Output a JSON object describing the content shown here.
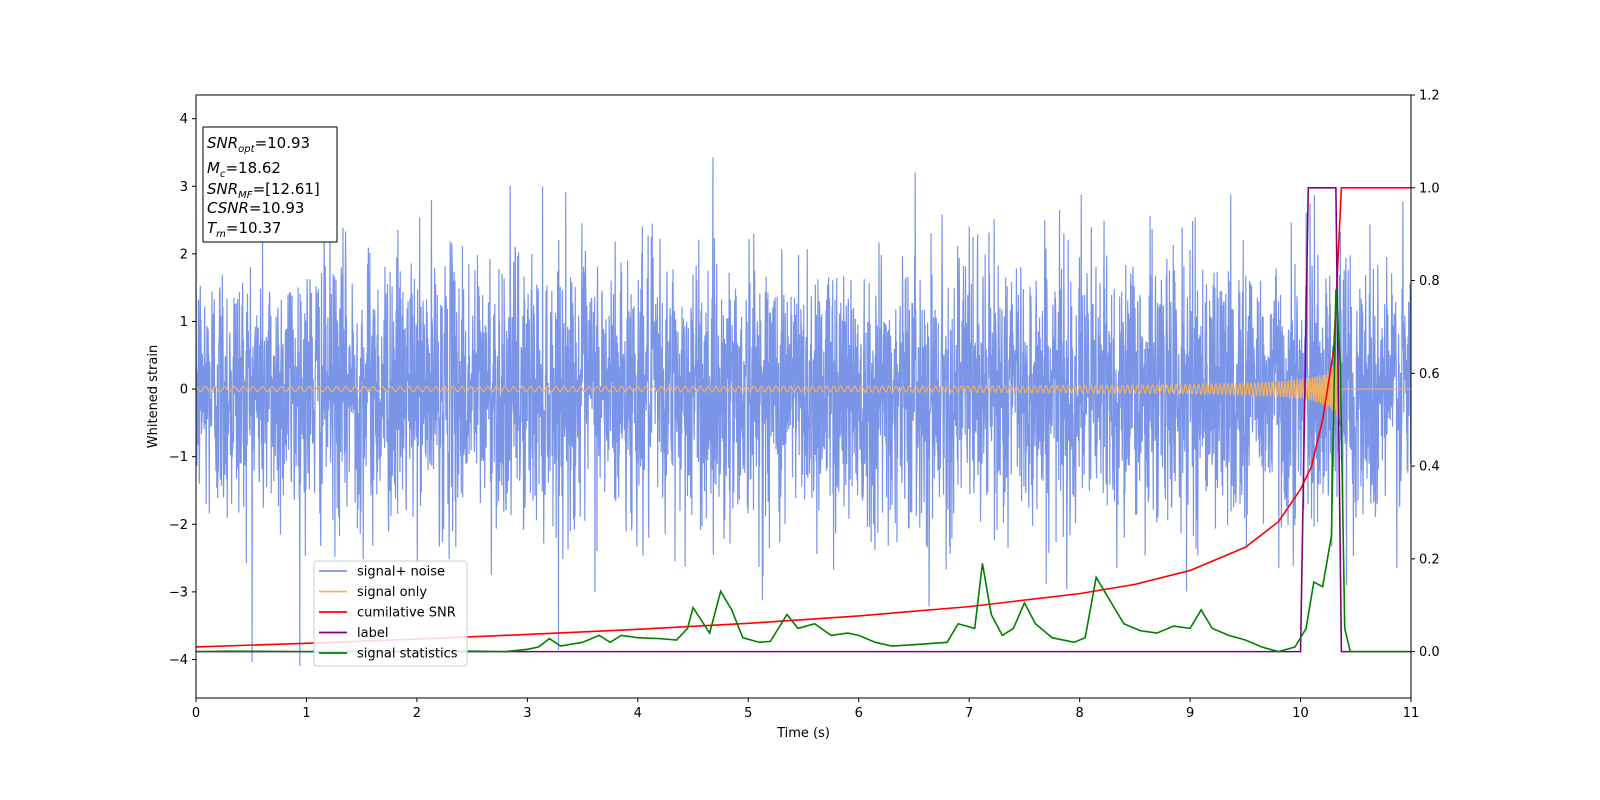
{
  "chart_data": {
    "type": "line",
    "xlabel": "Time (s)",
    "ylabel": "Whitened strain",
    "xlim": [
      0,
      11
    ],
    "ylim_left": [
      -4.57,
      4.35
    ],
    "ylim_right": [
      -0.1,
      1.2
    ],
    "x_ticks": [
      0,
      1,
      2,
      3,
      4,
      5,
      6,
      7,
      8,
      9,
      10,
      11
    ],
    "y_ticks_left": [
      -4,
      -3,
      -2,
      -1,
      0,
      1,
      2,
      3,
      4
    ],
    "y_ticks_left_labels": [
      "−4",
      "−3",
      "−2",
      "−1",
      "0",
      "1",
      "2",
      "3",
      "4"
    ],
    "y_ticks_right": [
      0.0,
      0.2,
      0.4,
      0.6,
      0.8,
      1.0,
      1.2
    ],
    "y_ticks_right_labels": [
      "0.0",
      "0.2",
      "0.4",
      "0.6",
      "0.8",
      "1.0",
      "1.2"
    ],
    "grid": false,
    "legend_position": "lower-left",
    "info_box": {
      "lines": [
        {
          "sym": "SNR",
          "sub": "opt",
          "value": "=10.93"
        },
        {
          "sym": "M",
          "sub": "c",
          "value": "=18.62"
        },
        {
          "sym": "SNR",
          "sub": "MF",
          "value": "=[12.61]"
        },
        {
          "sym": "CSNR",
          "sub": "",
          "value": "=10.93"
        },
        {
          "sym": "T",
          "sub": "m",
          "value": "=10.37"
        }
      ]
    },
    "series": [
      {
        "name": "signal+ noise",
        "color": "#7a94e8",
        "axis": "left",
        "description_values": {
          "envelope_typical": 1.5,
          "envelope_max": 3.95,
          "envelope_min": -4.17
        }
      },
      {
        "name": "signal only",
        "color": "#f0b060",
        "axis": "left",
        "chirp": {
          "t_merge": 10.37,
          "amp_start": 0.03,
          "amp_peak": 1.25
        }
      },
      {
        "name": "cumilative SNR",
        "color": "#ff0000",
        "axis": "right",
        "points": [
          [
            0,
            0.01
          ],
          [
            1,
            0.018
          ],
          [
            2,
            0.027
          ],
          [
            3,
            0.037
          ],
          [
            4,
            0.048
          ],
          [
            5,
            0.061
          ],
          [
            6,
            0.077
          ],
          [
            7,
            0.097
          ],
          [
            8,
            0.125
          ],
          [
            8.5,
            0.145
          ],
          [
            9,
            0.175
          ],
          [
            9.5,
            0.225
          ],
          [
            9.8,
            0.28
          ],
          [
            10.0,
            0.35
          ],
          [
            10.1,
            0.4
          ],
          [
            10.2,
            0.5
          ],
          [
            10.3,
            0.65
          ],
          [
            10.37,
            1.0
          ],
          [
            11,
            1.0
          ]
        ]
      },
      {
        "name": "label",
        "color": "#800080",
        "axis": "right",
        "points": [
          [
            0,
            0.0
          ],
          [
            10.0,
            0.0
          ],
          [
            10.07,
            1.0
          ],
          [
            10.32,
            1.0
          ],
          [
            10.37,
            0.0
          ],
          [
            11,
            0.0
          ]
        ]
      },
      {
        "name": "signal statistics",
        "color": "#008000",
        "axis": "right",
        "points": [
          [
            0,
            0.0
          ],
          [
            0.3,
            0.001
          ],
          [
            1,
            0.0
          ],
          [
            2,
            0.0
          ],
          [
            2.5,
            0.001
          ],
          [
            2.8,
            0.0
          ],
          [
            3,
            0.005
          ],
          [
            3.1,
            0.01
          ],
          [
            3.2,
            0.028
          ],
          [
            3.3,
            0.012
          ],
          [
            3.5,
            0.02
          ],
          [
            3.65,
            0.035
          ],
          [
            3.75,
            0.02
          ],
          [
            3.85,
            0.035
          ],
          [
            4.0,
            0.03
          ],
          [
            4.2,
            0.028
          ],
          [
            4.35,
            0.025
          ],
          [
            4.45,
            0.05
          ],
          [
            4.5,
            0.095
          ],
          [
            4.65,
            0.04
          ],
          [
            4.75,
            0.13
          ],
          [
            4.85,
            0.09
          ],
          [
            4.95,
            0.03
          ],
          [
            5.1,
            0.02
          ],
          [
            5.2,
            0.022
          ],
          [
            5.35,
            0.08
          ],
          [
            5.45,
            0.05
          ],
          [
            5.6,
            0.06
          ],
          [
            5.75,
            0.035
          ],
          [
            5.9,
            0.04
          ],
          [
            6.0,
            0.035
          ],
          [
            6.15,
            0.02
          ],
          [
            6.3,
            0.012
          ],
          [
            6.5,
            0.015
          ],
          [
            6.8,
            0.02
          ],
          [
            6.9,
            0.06
          ],
          [
            7.05,
            0.05
          ],
          [
            7.12,
            0.19
          ],
          [
            7.2,
            0.08
          ],
          [
            7.3,
            0.035
          ],
          [
            7.4,
            0.05
          ],
          [
            7.5,
            0.105
          ],
          [
            7.6,
            0.06
          ],
          [
            7.75,
            0.03
          ],
          [
            7.95,
            0.02
          ],
          [
            8.05,
            0.03
          ],
          [
            8.15,
            0.16
          ],
          [
            8.25,
            0.12
          ],
          [
            8.4,
            0.06
          ],
          [
            8.55,
            0.045
          ],
          [
            8.7,
            0.04
          ],
          [
            8.85,
            0.055
          ],
          [
            9.0,
            0.05
          ],
          [
            9.1,
            0.09
          ],
          [
            9.2,
            0.05
          ],
          [
            9.35,
            0.035
          ],
          [
            9.5,
            0.025
          ],
          [
            9.65,
            0.01
          ],
          [
            9.8,
            0.0
          ],
          [
            9.95,
            0.01
          ],
          [
            10.05,
            0.05
          ],
          [
            10.12,
            0.15
          ],
          [
            10.2,
            0.14
          ],
          [
            10.28,
            0.25
          ],
          [
            10.32,
            0.78
          ],
          [
            10.36,
            0.62
          ],
          [
            10.4,
            0.05
          ],
          [
            10.45,
            0.0
          ],
          [
            11,
            0.0
          ]
        ]
      }
    ]
  }
}
